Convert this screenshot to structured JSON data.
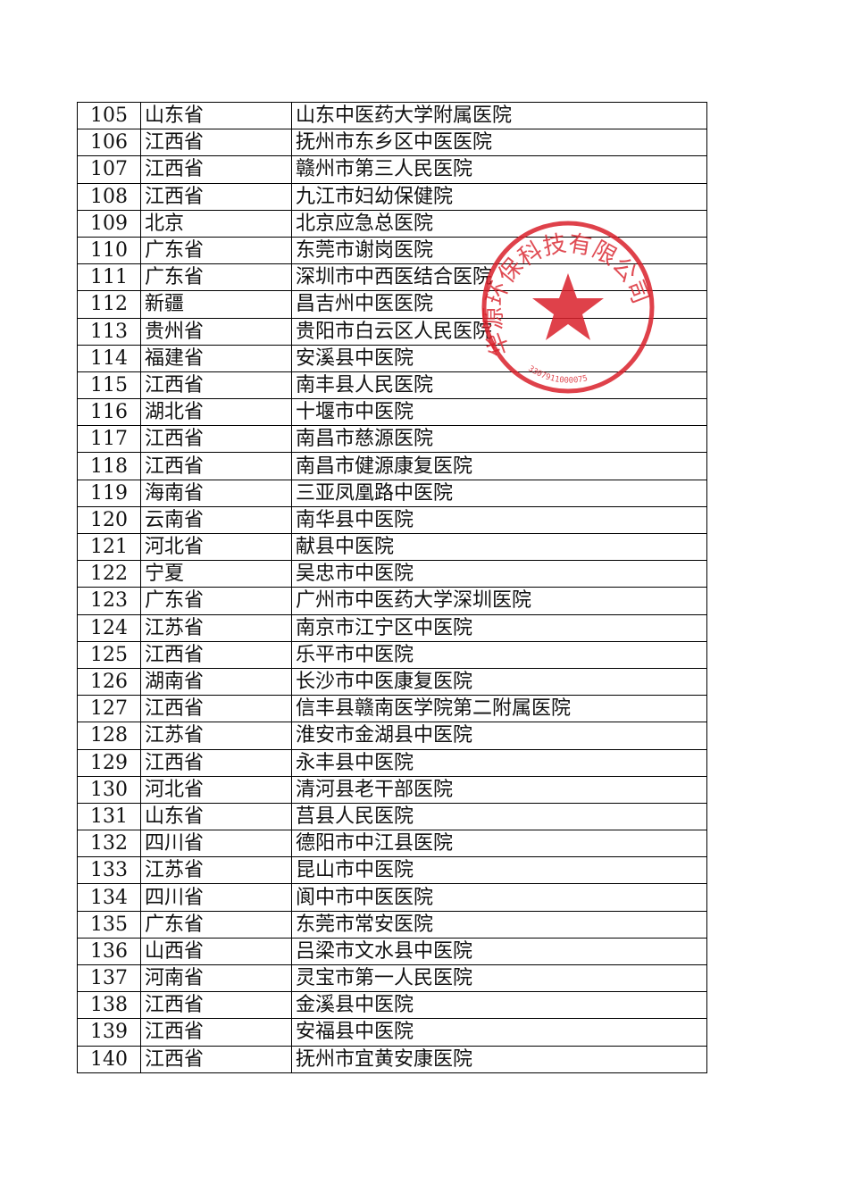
{
  "rows": [
    [
      "105",
      "山东省",
      "山东中医药大学附属医院"
    ],
    [
      "106",
      "江西省",
      "抚州市东乡区中医医院"
    ],
    [
      "107",
      "江西省",
      "赣州市第三人民医院"
    ],
    [
      "108",
      "江西省",
      "九江市妇幼保健院"
    ],
    [
      "109",
      "北京",
      "北京应急总医院"
    ],
    [
      "110",
      "广东省",
      "东莞市谢岗医院"
    ],
    [
      "111",
      "广东省",
      "深圳市中西医结合医院"
    ],
    [
      "112",
      "新疆",
      "昌吉州中医医院"
    ],
    [
      "113",
      "贵州省",
      "贵阳市白云区人民医院"
    ],
    [
      "114",
      "福建省",
      "安溪县中医院"
    ],
    [
      "115",
      "江西省",
      "南丰县人民医院"
    ],
    [
      "116",
      "湖北省",
      "十堰市中医院"
    ],
    [
      "117",
      "江西省",
      "南昌市慈源医院"
    ],
    [
      "118",
      "江西省",
      "南昌市健源康复医院"
    ],
    [
      "119",
      "海南省",
      "三亚凤凰路中医院"
    ],
    [
      "120",
      "云南省",
      "南华县中医院"
    ],
    [
      "121",
      "河北省",
      "献县中医院"
    ],
    [
      "122",
      "宁夏",
      "吴忠市中医院"
    ],
    [
      "123",
      "广东省",
      "广州市中医药大学深圳医院"
    ],
    [
      "124",
      "江苏省",
      "南京市江宁区中医院"
    ],
    [
      "125",
      "江西省",
      "乐平市中医院"
    ],
    [
      "126",
      "湖南省",
      "长沙市中医康复医院"
    ],
    [
      "127",
      "江西省",
      "信丰县赣南医学院第二附属医院"
    ],
    [
      "128",
      "江苏省",
      "淮安市金湖县中医院"
    ],
    [
      "129",
      "江西省",
      "永丰县中医院"
    ],
    [
      "130",
      "河北省",
      "清河县老干部医院"
    ],
    [
      "131",
      "山东省",
      "莒县人民医院"
    ],
    [
      "132",
      "四川省",
      "德阳市中江县医院"
    ],
    [
      "133",
      "江苏省",
      "昆山市中医院"
    ],
    [
      "134",
      "四川省",
      "阆中市中医医院"
    ],
    [
      "135",
      "广东省",
      "东莞市常安医院"
    ],
    [
      "136",
      "山西省",
      "吕梁市文水县中医院"
    ],
    [
      "137",
      "河南省",
      "灵宝市第一人民医院"
    ],
    [
      "138",
      "江西省",
      "金溪县中医院"
    ],
    [
      "139",
      "江西省",
      "安福县中医院"
    ],
    [
      "140",
      "江西省",
      "抚州市宜黄安康医院"
    ]
  ],
  "stamp": {
    "text": "华源环保科技有限公司",
    "code": "3307911000075",
    "color": "#d9202a"
  }
}
